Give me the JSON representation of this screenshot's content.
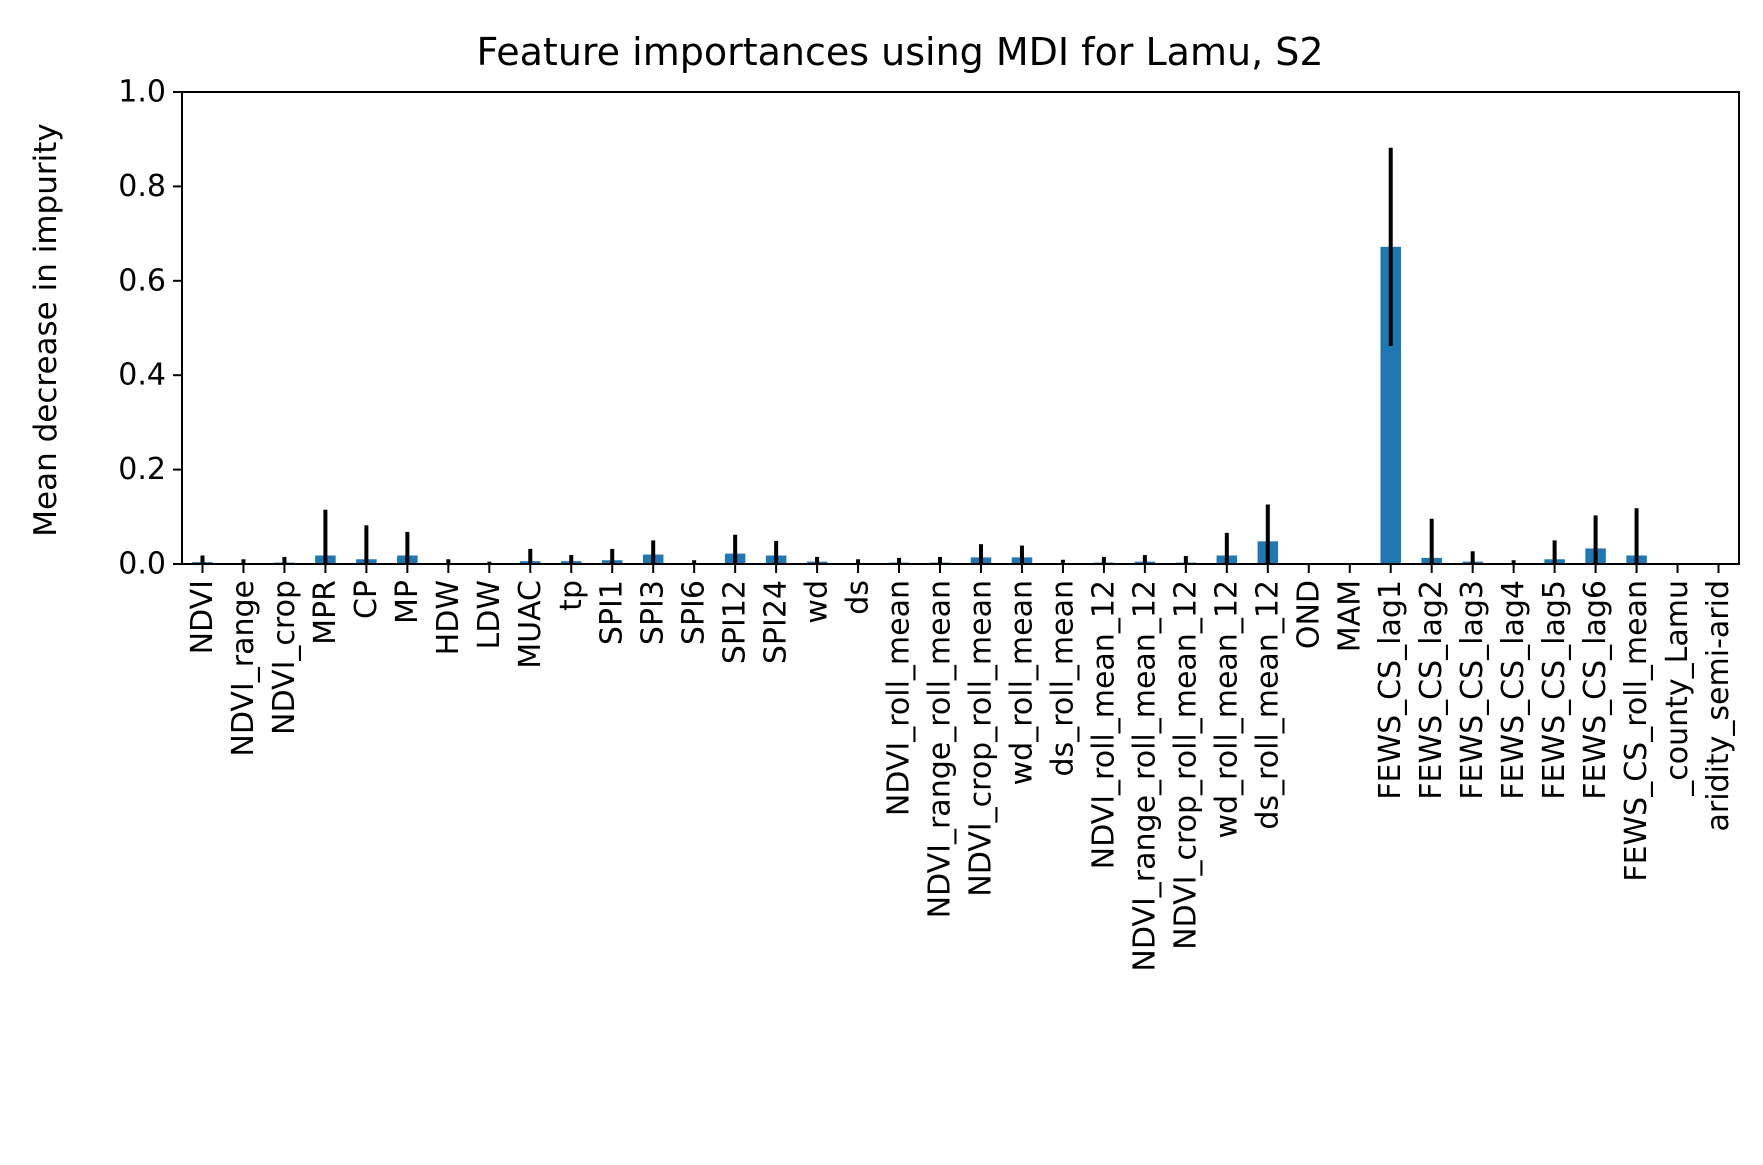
{
  "chart_data": {
    "type": "bar",
    "title": "Feature importances using MDI for Lamu, S2",
    "xlabel": "",
    "ylabel": "Mean decrease in impurity",
    "ylim": [
      0,
      1.0
    ],
    "yticks": [
      "0.0",
      "0.2",
      "0.4",
      "0.6",
      "0.8",
      "1.0"
    ],
    "grid": false,
    "bar_color": "#1f77b4",
    "error_color": "#000000",
    "categories": [
      "NDVI",
      "NDVI_range",
      "NDVI_crop",
      "MPR",
      "CP",
      "MP",
      "HDW",
      "LDW",
      "MUAC",
      "tp",
      "SPI1",
      "SPI3",
      "SPI6",
      "SPI12",
      "SPI24",
      "wd",
      "ds",
      "NDVI_roll_mean",
      "NDVI_range_roll_mean",
      "NDVI_crop_roll_mean",
      "wd_roll_mean",
      "ds_roll_mean",
      "NDVI_roll_mean_12",
      "NDVI_range_roll_mean_12",
      "NDVI_crop_roll_mean_12",
      "wd_roll_mean_12",
      "ds_roll_mean_12",
      "OND",
      "MAM",
      "FEWS_CS_lag1",
      "FEWS_CS_lag2",
      "FEWS_CS_lag3",
      "FEWS_CS_lag4",
      "FEWS_CS_lag5",
      "FEWS_CS_lag6",
      "FEWS_CS_roll_mean",
      "_county_Lamu",
      "aridity_semi-arid"
    ],
    "values": [
      0.004,
      0.002,
      0.003,
      0.018,
      0.01,
      0.018,
      0.002,
      0.001,
      0.006,
      0.006,
      0.008,
      0.02,
      0.002,
      0.022,
      0.018,
      0.005,
      0.002,
      0.003,
      0.003,
      0.014,
      0.014,
      0.002,
      0.003,
      0.005,
      0.003,
      0.018,
      0.048,
      0.0,
      0.0,
      0.672,
      0.013,
      0.005,
      0.002,
      0.01,
      0.033,
      0.018,
      0.0,
      0.0
    ],
    "errors": [
      0.014,
      0.008,
      0.012,
      0.097,
      0.072,
      0.05,
      0.008,
      0.004,
      0.026,
      0.013,
      0.024,
      0.03,
      0.006,
      0.04,
      0.031,
      0.01,
      0.008,
      0.01,
      0.012,
      0.028,
      0.025,
      0.007,
      0.012,
      0.014,
      0.014,
      0.048,
      0.078,
      0.0,
      0.0,
      0.21,
      0.083,
      0.022,
      0.006,
      0.04,
      0.07,
      0.1,
      0.0,
      0.0
    ]
  }
}
